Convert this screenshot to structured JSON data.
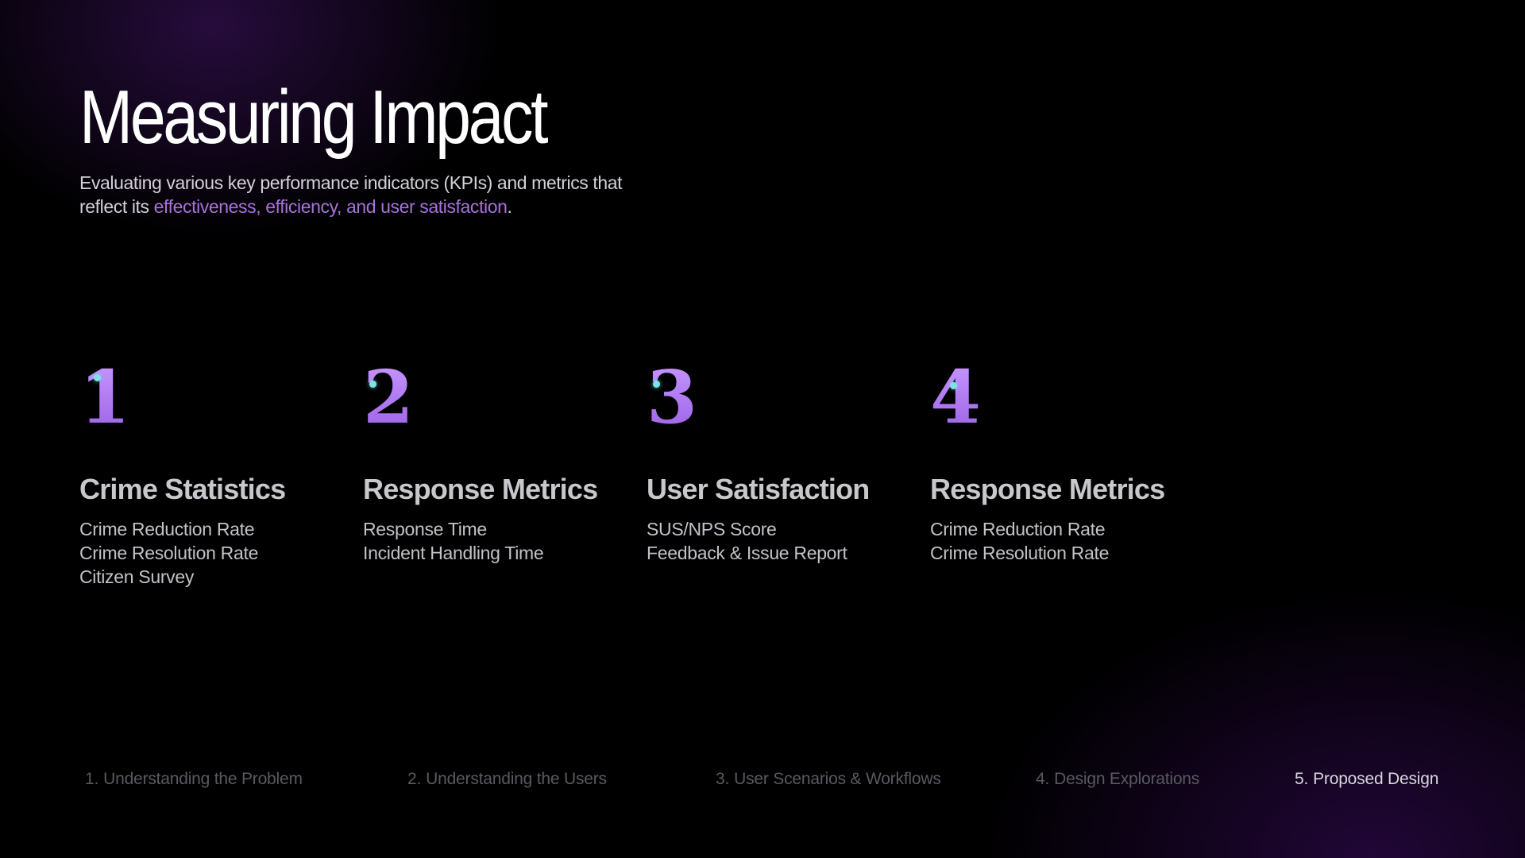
{
  "slide": {
    "title": "Measuring Impact",
    "subtitle": {
      "text_before": "Evaluating various key performance indicators (KPIs) and metrics that reflect its ",
      "highlight": "effectiveness, efficiency, and user satisfaction",
      "text_after": ".",
      "highlight_color": "#a573d9"
    }
  },
  "metrics": [
    {
      "number": "1",
      "heading": "Crime Statistics",
      "items": [
        "Crime Reduction Rate",
        "Crime Resolution Rate",
        "Citizen Survey"
      ]
    },
    {
      "number": "2",
      "heading": "Response Metrics",
      "items": [
        "Response Time",
        "Incident Handling Time"
      ]
    },
    {
      "number": "3",
      "heading": "User Satisfaction",
      "items": [
        "SUS/NPS Score",
        "Feedback & Issue Report"
      ]
    },
    {
      "number": "4",
      "heading": "Response Metrics",
      "items": [
        "Crime Reduction Rate",
        "Crime Resolution Rate"
      ]
    }
  ],
  "nav": {
    "items": [
      {
        "num": "1.",
        "label": "Understanding the Problem",
        "active": false
      },
      {
        "num": "2.",
        "label": "Understanding the Users",
        "active": false
      },
      {
        "num": "3.",
        "label": "User Scenarios & Workflows",
        "active": false
      },
      {
        "num": "4.",
        "label": "Design Explorations",
        "active": false
      },
      {
        "num": "5.",
        "label": "Proposed Design",
        "active": true
      }
    ]
  },
  "colors": {
    "accent_purple": "#a573d9",
    "number_purple": "#b27ef0",
    "accent_cyan": "#7de3e6",
    "nav_inactive": "#595961",
    "nav_active": "#d9d6de"
  }
}
